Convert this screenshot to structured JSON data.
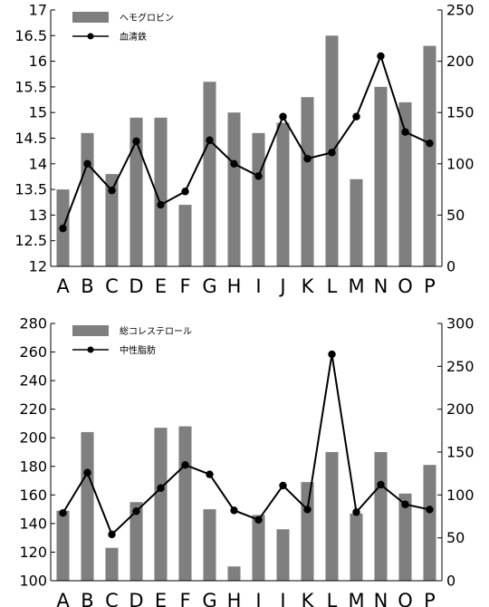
{
  "chart_data": [
    {
      "type": "bar+line",
      "categories": [
        "A",
        "B",
        "C",
        "D",
        "E",
        "F",
        "G",
        "H",
        "I",
        "J",
        "K",
        "L",
        "M",
        "N",
        "O",
        "P"
      ],
      "series": [
        {
          "name": "ヘモグロビン",
          "type": "bar",
          "axis": "left",
          "values": [
            13.5,
            14.6,
            13.8,
            14.9,
            14.9,
            13.2,
            15.6,
            15.0,
            14.6,
            14.8,
            15.3,
            16.5,
            13.7,
            15.5,
            15.2,
            16.3
          ]
        },
        {
          "name": "血清鉄",
          "type": "line",
          "axis": "right",
          "values": [
            37,
            100,
            74,
            122,
            60,
            73,
            123,
            100,
            88,
            146,
            105,
            111,
            146,
            205,
            131,
            120
          ]
        }
      ],
      "y_left": {
        "min": 12,
        "max": 17,
        "ticks": [
          "12",
          "12.5",
          "13",
          "13.5",
          "14",
          "14.5",
          "15",
          "15.5",
          "16",
          "16.5",
          "17"
        ]
      },
      "y_right": {
        "min": 0,
        "max": 250,
        "ticks": [
          "0",
          "50",
          "100",
          "150",
          "200",
          "250"
        ]
      },
      "legend": "top-left",
      "grid": false
    },
    {
      "type": "bar+line",
      "categories": [
        "A",
        "B",
        "C",
        "D",
        "E",
        "F",
        "G",
        "H",
        "I",
        "J",
        "K",
        "L",
        "M",
        "N",
        "O",
        "P"
      ],
      "series": [
        {
          "name": "総コレステロール",
          "type": "bar",
          "axis": "left",
          "values": [
            149,
            204,
            123,
            155,
            207,
            208,
            150,
            110,
            146,
            136,
            169,
            190,
            147,
            190,
            161,
            181
          ]
        },
        {
          "name": "中性脂肪",
          "type": "line",
          "axis": "right",
          "values": [
            79,
            126,
            54,
            81,
            108,
            135,
            124,
            82,
            71,
            111,
            83,
            264,
            80,
            112,
            89,
            83
          ]
        }
      ],
      "y_left": {
        "min": 100,
        "max": 280,
        "ticks": [
          "100",
          "120",
          "140",
          "160",
          "180",
          "200",
          "220",
          "240",
          "260",
          "280"
        ]
      },
      "y_right": {
        "min": 0,
        "max": 300,
        "ticks": [
          "0",
          "50",
          "100",
          "150",
          "200",
          "250",
          "300"
        ]
      },
      "legend": "top-left",
      "grid": false
    }
  ],
  "colors": {
    "bar": "#7f7f7f",
    "line": "#000000"
  }
}
